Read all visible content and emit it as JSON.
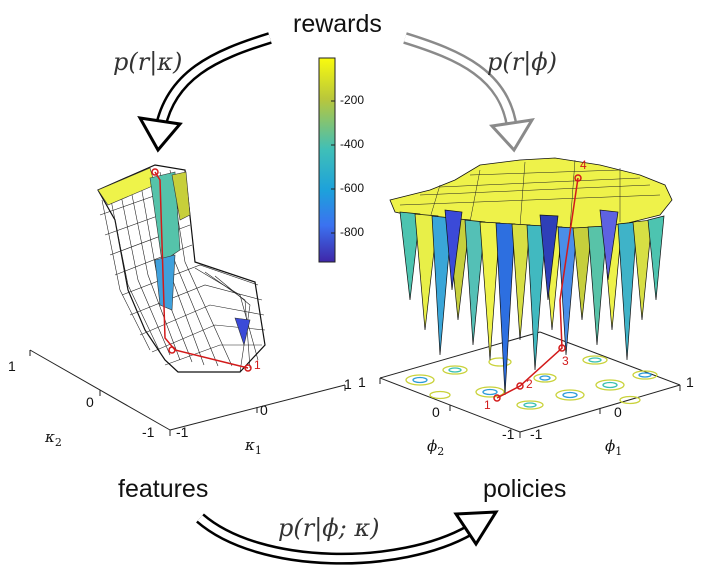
{
  "title": "rewards",
  "bottom_left_label": "features",
  "bottom_right_label": "policies",
  "arrows": {
    "left": "p(r|κ)",
    "right": "p(r|ϕ)",
    "bottom": "p(r|ϕ; κ)"
  },
  "colorbar": {
    "ticks": [
      "-200",
      "-400",
      "-600",
      "-800"
    ],
    "colors": [
      "#f9fb0e",
      "#b9c73b",
      "#3fbfb8",
      "#1da1db",
      "#3b72f0",
      "#3e26a8"
    ]
  },
  "left_plot": {
    "axis_x_label": "κ",
    "axis_x_sub": "1",
    "axis_y_label": "κ",
    "axis_y_sub": "2",
    "x_ticks": [
      "-1",
      "0",
      "1"
    ],
    "y_ticks": [
      "-1",
      "0",
      "1"
    ],
    "path_labels": [
      "1"
    ]
  },
  "right_plot": {
    "axis_x_label": "ϕ",
    "axis_x_sub": "1",
    "axis_y_label": "ϕ",
    "axis_y_sub": "2",
    "x_ticks": [
      "-1",
      "0",
      "1"
    ],
    "y_ticks": [
      "-1",
      "0",
      "1"
    ],
    "path_labels": [
      "1",
      "2",
      "3",
      "4"
    ]
  }
}
